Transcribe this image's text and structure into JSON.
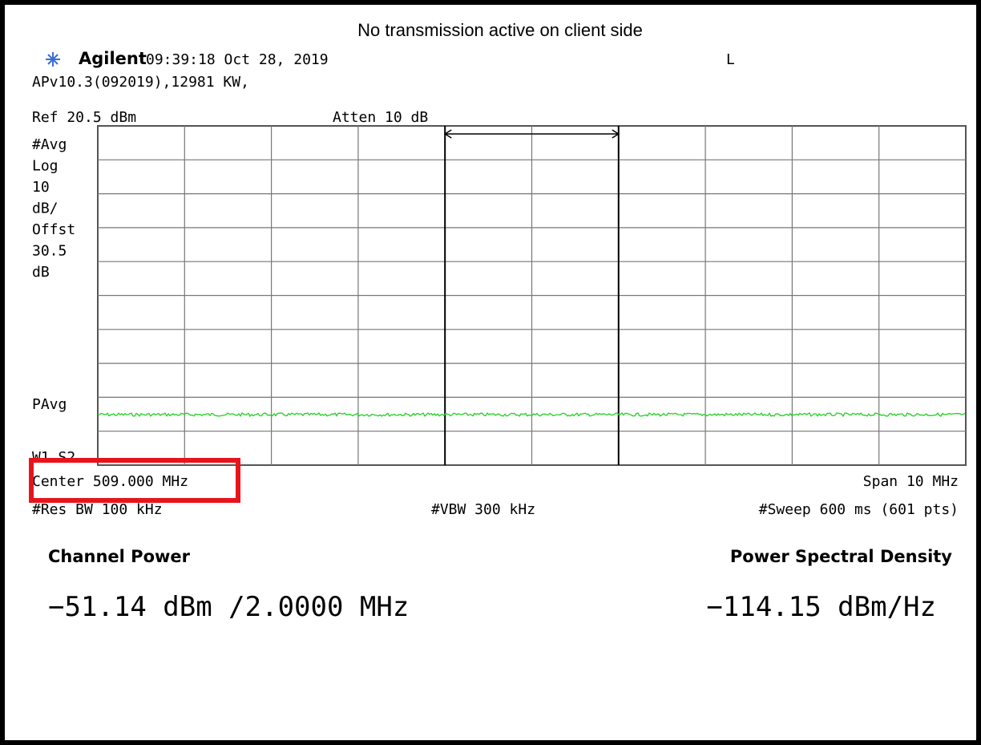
{
  "caption": "No transmission active on client side",
  "header": {
    "brand": "Agilent",
    "timestamp": "09:39:18  Oct 28, 2019",
    "mode": "L",
    "info": "APv10.3(092019),12981 KW,"
  },
  "settings": {
    "ref": "Ref 20.5 dBm",
    "atten": "Atten 10 dB",
    "left_labels": [
      "#Avg",
      "Log",
      "10",
      "dB/",
      "Offst",
      "30.5",
      "dB"
    ],
    "trace_label": "PAvg",
    "window_label": "W1  S2",
    "center": "Center 509.000 MHz",
    "span": "Span 10 MHz",
    "res_bw": "#Res BW 100 kHz",
    "vbw": "#VBW 300 kHz",
    "sweep": "#Sweep 600 ms (601 pts)"
  },
  "results": {
    "channel_power_label": "Channel Power",
    "channel_power": "−51.14 dBm /2.0000 MHz",
    "psd_label": "Power Spectral Density",
    "psd": "−114.15 dBm/Hz"
  }
}
